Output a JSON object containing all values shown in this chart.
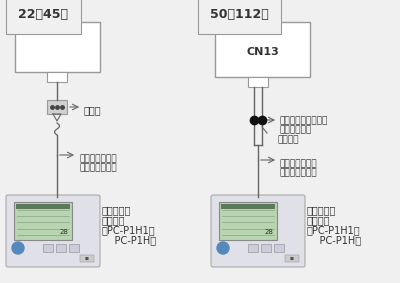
{
  "bg_color": "#f0f0f0",
  "title_left": "22～45型",
  "title_right": "50～112型",
  "label_cn13": "CN13",
  "label_terminal": "端子台",
  "label_connector_cord_1": "コネクタ付きコード",
  "label_connector_cord_2": "（製品付属）",
  "label_crimp": "圧着接続",
  "label_remote_cord_1": "リモコンコード",
  "label_remote_cord_2": "（現地準備品）",
  "label_amenity_1": "アメニティ",
  "label_amenity_2": "リモコン",
  "label_amenity_3": "（PC-P1H1、",
  "label_amenity_4": "    PC-P1H）",
  "line_color": "#666666",
  "box_fill": "#ffffff",
  "box_edge": "#999999",
  "remote_screen_fill": "#b8d4b0",
  "remote_body_fill": "#e0e0e8",
  "remote_body_edge": "#aaaaaa",
  "dot_color": "#111111",
  "text_color": "#333333",
  "fs_title": 9,
  "fs_label": 6.5,
  "fs_cn": 8,
  "fs_amenity": 7
}
